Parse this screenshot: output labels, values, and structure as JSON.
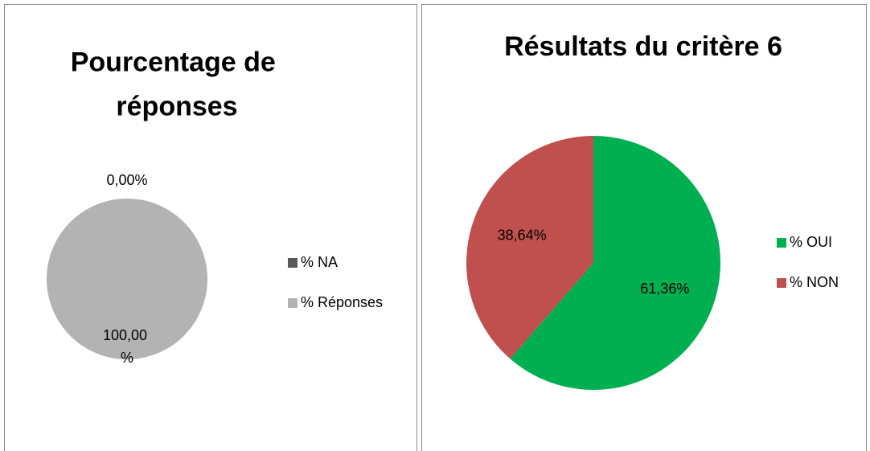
{
  "chart_data": [
    {
      "type": "pie",
      "title": "Pourcentage de réponses",
      "categories": [
        "% NA",
        "% Réponses"
      ],
      "values": [
        0,
        100
      ],
      "value_labels": [
        "0,00%",
        "100,00 %"
      ],
      "colors": [
        "#595959",
        "#b3b3b3"
      ]
    },
    {
      "type": "pie",
      "title": "Résultats du critère 6",
      "categories": [
        "% OUI",
        "% NON"
      ],
      "values": [
        61.36,
        38.64
      ],
      "value_labels": [
        "61,36%",
        "38,64%"
      ],
      "colors": [
        "#00b050",
        "#c0504d"
      ]
    }
  ]
}
